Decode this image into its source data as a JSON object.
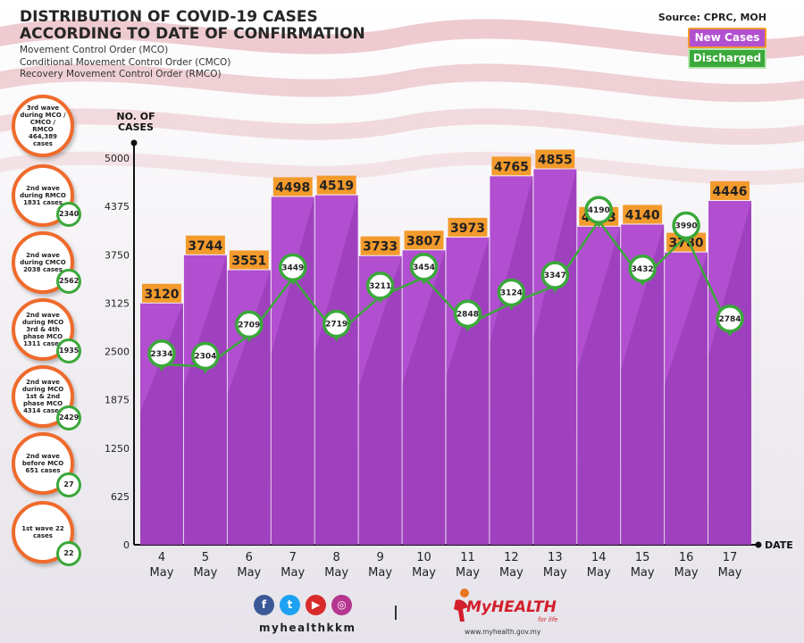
{
  "header": {
    "title_line1": "DISTRIBUTION OF COVID-19 CASES",
    "title_line2": "ACCORDING TO DATE OF CONFIRMATION",
    "subtitle_lines": [
      "Movement Control Order (MCO)",
      "Conditional Movement Control Order (CMCO)",
      "Recovery Movement Control Order (RMCO)"
    ],
    "source": "Source: CPRC, MOH"
  },
  "legend": {
    "new_cases": "New Cases",
    "discharged": "Discharged"
  },
  "waves": [
    {
      "label": "3rd wave during MCO / CMCO / RMCO 464,389 cases",
      "badge": ""
    },
    {
      "label": "2nd wave during RMCO 1831 cases",
      "badge": "2340"
    },
    {
      "label": "2nd wave during CMCO 2038 cases",
      "badge": "2562"
    },
    {
      "label": "2nd wave during MCO 3rd & 4th phase MCO 1311 cases",
      "badge": "1935"
    },
    {
      "label": "2nd wave during MCO 1st & 2nd phase MCO 4314 cases",
      "badge": "2429"
    },
    {
      "label": "2nd wave before MCO 651 cases",
      "badge": "27"
    },
    {
      "label": "1st wave 22 cases",
      "badge": "22"
    }
  ],
  "colors": {
    "bar": "#b14fd0",
    "bar_dark": "#8f37ae",
    "bar_label_bg": "#f39a2c",
    "line": "#3aa83a",
    "wave_border": "#ef6a2b"
  },
  "chart_data": {
    "type": "bar",
    "categories": [
      "4 May",
      "5 May",
      "6 May",
      "7 May",
      "8 May",
      "9 May",
      "10 May",
      "11 May",
      "12 May",
      "13 May",
      "14 May",
      "15 May",
      "16 May",
      "17 May"
    ],
    "x_day": [
      "4",
      "5",
      "6",
      "7",
      "8",
      "9",
      "10",
      "11",
      "12",
      "13",
      "14",
      "15",
      "16",
      "17"
    ],
    "x_month": "May",
    "series": [
      {
        "name": "New Cases",
        "type": "bar",
        "values": [
          3120,
          3744,
          3551,
          4498,
          4519,
          3733,
          3807,
          3973,
          4765,
          4855,
          4113,
          4140,
          3780,
          4446
        ]
      },
      {
        "name": "Discharged",
        "type": "line",
        "values": [
          2334,
          2304,
          2709,
          3449,
          2719,
          3211,
          3454,
          2848,
          3124,
          3347,
          4190,
          3432,
          3990,
          2784
        ]
      }
    ],
    "ylabel_line1": "NO. OF",
    "ylabel_line2": "CASES",
    "xlabel": "DATE",
    "yticks": [
      0,
      625,
      1250,
      1875,
      2500,
      3125,
      3750,
      4375,
      5000
    ],
    "ylim": [
      0,
      5000
    ]
  },
  "footer": {
    "handle": "myhealthkkm",
    "social": [
      "f",
      "t",
      "▶",
      "◎"
    ],
    "logo_text": "MyHEALTH",
    "logo_tagline": "for life",
    "logo_url": "www.myhealth.gov.my"
  }
}
